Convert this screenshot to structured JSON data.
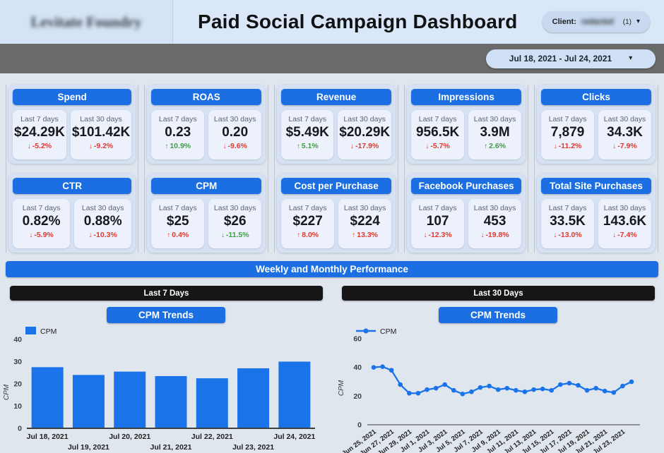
{
  "header": {
    "logo_text_redacted": "Levitate Foundry",
    "title": "Paid Social Campaign Dashboard",
    "client_label": "Client:",
    "client_value_redacted": "redacted",
    "client_count": "(1)"
  },
  "icons": {
    "caret_down": "▾",
    "arrow_up": "↑",
    "arrow_down": "↓"
  },
  "filters": {
    "date_range": "Jul 18, 2021 - Jul 24, 2021"
  },
  "banner": "Weekly and Monthly Performance",
  "sections": [
    {
      "header": "Last 7 Days",
      "button": "CPM Trends"
    },
    {
      "header": "Last 30 Days",
      "button": "CPM Trends"
    }
  ],
  "colors": {
    "accent": "#1b6fe3",
    "chart_blue": "#1a73e8",
    "negative": "#df382e",
    "positive": "#3f9d44",
    "dark_bar": "#161616"
  },
  "kpis": [
    {
      "title": "Spend",
      "windows": [
        {
          "label": "Last 7 days",
          "value": "$24.29K",
          "arrow": "down",
          "delta": "-5.2%",
          "tone": "neg"
        },
        {
          "label": "Last 30 days",
          "value": "$101.42K",
          "arrow": "down",
          "delta": "-9.2%",
          "tone": "neg"
        }
      ]
    },
    {
      "title": "ROAS",
      "windows": [
        {
          "label": "Last 7 days",
          "value": "0.23",
          "arrow": "up",
          "delta": "10.9%",
          "tone": "pos"
        },
        {
          "label": "Last 30 days",
          "value": "0.20",
          "arrow": "down",
          "delta": "-9.6%",
          "tone": "neg"
        }
      ]
    },
    {
      "title": "Revenue",
      "windows": [
        {
          "label": "Last 7 days",
          "value": "$5.49K",
          "arrow": "up",
          "delta": "5.1%",
          "tone": "pos"
        },
        {
          "label": "Last 30 days",
          "value": "$20.29K",
          "arrow": "down",
          "delta": "-17.9%",
          "tone": "neg"
        }
      ]
    },
    {
      "title": "Impressions",
      "windows": [
        {
          "label": "Last 7 days",
          "value": "956.5K",
          "arrow": "down",
          "delta": "-5.7%",
          "tone": "neg"
        },
        {
          "label": "Last 30 days",
          "value": "3.9M",
          "arrow": "up",
          "delta": "2.6%",
          "tone": "pos"
        }
      ]
    },
    {
      "title": "Clicks",
      "windows": [
        {
          "label": "Last 7 days",
          "value": "7,879",
          "arrow": "down",
          "delta": "-11.2%",
          "tone": "neg"
        },
        {
          "label": "Last 30 days",
          "value": "34.3K",
          "arrow": "down",
          "delta": "-7.9%",
          "tone": "neg"
        }
      ]
    },
    {
      "title": "CTR",
      "windows": [
        {
          "label": "Last 7 days",
          "value": "0.82%",
          "arrow": "down",
          "delta": "-5.9%",
          "tone": "neg"
        },
        {
          "label": "Last 30 days",
          "value": "0.88%",
          "arrow": "down",
          "delta": "-10.3%",
          "tone": "neg"
        }
      ]
    },
    {
      "title": "CPM",
      "windows": [
        {
          "label": "Last 7 days",
          "value": "$25",
          "arrow": "up",
          "delta": "0.4%",
          "tone": "neg"
        },
        {
          "label": "Last 30 days",
          "value": "$26",
          "arrow": "down",
          "delta": "-11.5%",
          "tone": "pos"
        }
      ]
    },
    {
      "title": "Cost per Purchase",
      "windows": [
        {
          "label": "Last 7 days",
          "value": "$227",
          "arrow": "up",
          "delta": "8.0%",
          "tone": "neg"
        },
        {
          "label": "Last 30 days",
          "value": "$224",
          "arrow": "up",
          "delta": "13.3%",
          "tone": "neg"
        }
      ]
    },
    {
      "title": "Facebook Purchases",
      "windows": [
        {
          "label": "Last 7 days",
          "value": "107",
          "arrow": "down",
          "delta": "-12.3%",
          "tone": "neg"
        },
        {
          "label": "Last 30 days",
          "value": "453",
          "arrow": "down",
          "delta": "-19.8%",
          "tone": "neg"
        }
      ]
    },
    {
      "title": "Total Site Purchases",
      "windows": [
        {
          "label": "Last 7 days",
          "value": "33.5K",
          "arrow": "down",
          "delta": "-13.0%",
          "tone": "neg"
        },
        {
          "label": "Last 30 days",
          "value": "143.6K",
          "arrow": "down",
          "delta": "-7.4%",
          "tone": "neg"
        }
      ]
    }
  ],
  "chart_data": [
    {
      "type": "bar",
      "section": "Last 7 Days",
      "title": "CPM Trends",
      "legend": "CPM",
      "ylabel": "CPM",
      "ylim": [
        0,
        40
      ],
      "yticks": [
        0,
        10,
        20,
        30,
        40
      ],
      "grid": false,
      "legend_position": "top-left",
      "categories": [
        "Jul 18, 2021",
        "Jul 19, 2021",
        "Jul 20, 2021",
        "Jul 21, 2021",
        "Jul 22, 2021",
        "Jul 23, 2021",
        "Jul 24, 2021"
      ],
      "values": [
        27.5,
        24,
        25.5,
        23.5,
        22.5,
        27,
        30
      ]
    },
    {
      "type": "line",
      "section": "Last 30 Days",
      "title": "CPM Trends",
      "legend": "CPM",
      "ylabel": "CPM",
      "ylim": [
        0,
        60
      ],
      "yticks": [
        0,
        20,
        40,
        60
      ],
      "grid": false,
      "legend_position": "top-left",
      "tick_every": 2,
      "categories": [
        "Jun 25, 2021",
        "Jun 26, 2021",
        "Jun 27, 2021",
        "Jun 28, 2021",
        "Jun 29, 2021",
        "Jun 30, 2021",
        "Jul 1, 2021",
        "Jul 2, 2021",
        "Jul 3, 2021",
        "Jul 4, 2021",
        "Jul 5, 2021",
        "Jul 6, 2021",
        "Jul 7, 2021",
        "Jul 8, 2021",
        "Jul 9, 2021",
        "Jul 10, 2021",
        "Jul 11, 2021",
        "Jul 12, 2021",
        "Jul 13, 2021",
        "Jul 14, 2021",
        "Jul 15, 2021",
        "Jul 16, 2021",
        "Jul 17, 2021",
        "Jul 18, 2021",
        "Jul 19, 2021",
        "Jul 20, 2021",
        "Jul 21, 2021",
        "Jul 22, 2021",
        "Jul 23, 2021",
        "Jul 24, 2021"
      ],
      "values": [
        40,
        40.5,
        38,
        28,
        22,
        22,
        24.5,
        25.5,
        28,
        24,
        21.5,
        23,
        26,
        27,
        24.5,
        25.5,
        24,
        23,
        24.5,
        25,
        24,
        28,
        29,
        27.5,
        24,
        25.5,
        23.5,
        22.5,
        27,
        30
      ]
    }
  ]
}
